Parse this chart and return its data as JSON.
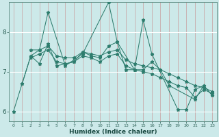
{
  "xlabel": "Humidex (Indice chaleur)",
  "xlim": [
    -0.5,
    23.5
  ],
  "ylim": [
    5.75,
    8.75
  ],
  "xticks": [
    0,
    1,
    2,
    3,
    4,
    5,
    6,
    7,
    8,
    9,
    10,
    11,
    12,
    13,
    14,
    15,
    16,
    17,
    18,
    19,
    20,
    21,
    22,
    23
  ],
  "yticks": [
    6,
    7,
    8
  ],
  "bg_color": "#cce9e9",
  "vgrid_color": "#c8a0a0",
  "hgrid_color": "#ffffff",
  "line_color": "#2e7d6e",
  "series": [
    {
      "x": [
        0,
        1,
        2,
        3,
        4,
        6,
        8,
        11,
        12,
        14,
        15,
        16,
        19,
        20,
        21,
        22,
        23
      ],
      "y": [
        6.0,
        6.7,
        7.4,
        7.55,
        8.5,
        7.15,
        7.45,
        8.75,
        7.75,
        7.05,
        8.3,
        7.45,
        6.05,
        6.05,
        6.55,
        6.65,
        6.4
      ]
    },
    {
      "x": [
        1,
        2,
        3,
        4,
        5,
        6,
        7,
        8,
        9,
        10,
        11,
        12,
        13,
        14,
        15,
        16,
        17,
        18,
        21,
        22,
        23
      ],
      "y": [
        6.7,
        7.4,
        7.2,
        7.7,
        7.15,
        7.2,
        7.25,
        7.5,
        7.4,
        7.35,
        7.65,
        7.75,
        7.05,
        7.05,
        7.05,
        7.25,
        7.05,
        6.65,
        6.3,
        6.65,
        6.4
      ]
    },
    {
      "x": [
        2,
        3,
        4,
        5,
        6,
        7,
        8,
        9,
        10,
        11,
        12,
        13,
        14,
        15,
        16,
        17,
        18,
        19,
        20,
        21,
        22,
        23
      ],
      "y": [
        7.55,
        7.55,
        7.65,
        7.4,
        7.35,
        7.35,
        7.5,
        7.45,
        7.4,
        7.5,
        7.55,
        7.3,
        7.2,
        7.15,
        7.1,
        7.05,
        6.95,
        6.85,
        6.75,
        6.65,
        6.6,
        6.5
      ]
    },
    {
      "x": [
        2,
        3,
        4,
        5,
        6,
        7,
        8,
        9,
        10,
        11,
        12,
        13,
        14,
        15,
        16,
        17,
        18,
        19,
        20,
        21,
        22,
        23
      ],
      "y": [
        7.35,
        7.45,
        7.55,
        7.25,
        7.2,
        7.25,
        7.4,
        7.35,
        7.25,
        7.4,
        7.45,
        7.15,
        7.05,
        7.0,
        6.95,
        6.85,
        6.75,
        6.65,
        6.6,
        6.35,
        6.55,
        6.45
      ]
    }
  ]
}
